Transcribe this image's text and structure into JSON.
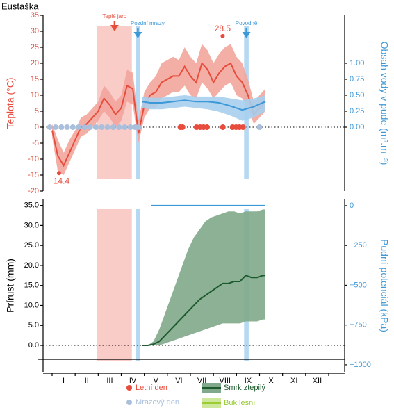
{
  "title": "Eustaška",
  "months": [
    "I",
    "II",
    "III",
    "IV",
    "V",
    "VI",
    "VII",
    "VIII",
    "IX",
    "X",
    "XI",
    "XII"
  ],
  "xlim": [
    0,
    12
  ],
  "periods": [
    {
      "label": "Teplé jaro",
      "start": 1.96,
      "end": 3.46,
      "color": "#f8c3bd"
    },
    {
      "label": "Pozdní mrazy",
      "start": 3.62,
      "end": 3.82,
      "color": "#a9d2f1"
    },
    {
      "label": "Povodně",
      "start": 8.33,
      "end": 8.53,
      "color": "#a9d2f1"
    }
  ],
  "chart_data": [
    {
      "type": "line",
      "ylabel": "Teplota (°C)",
      "y2label": "Obsah vody v pude (m³.m⁻³)",
      "ylim": [
        -20,
        35
      ],
      "yticks": [
        -20,
        -15,
        -10,
        -5,
        0,
        5,
        10,
        15,
        20,
        25,
        30,
        35
      ],
      "y2lim": [
        -1,
        1.75
      ],
      "y2ticks": [
        {
          "value": 0,
          "label": "0.00"
        },
        {
          "value": 0.25,
          "label": "0.25"
        },
        {
          "value": 0.5,
          "label": "0.50"
        },
        {
          "value": 0.75,
          "label": "0.75"
        },
        {
          "value": 1,
          "label": "1.00"
        }
      ],
      "series": [
        {
          "color": "#e74c3c",
          "band_color": "#f2a59c",
          "x": [
            0,
            0.25,
            0.5,
            0.75,
            1,
            1.25,
            1.5,
            1.75,
            2,
            2.25,
            2.5,
            2.75,
            3,
            3.25,
            3.5,
            3.75,
            4,
            4.25,
            4.5,
            4.75,
            5,
            5.25,
            5.5,
            5.75,
            6,
            6.25,
            6.5,
            6.75,
            7,
            7.25,
            7.5,
            7.75,
            8,
            8.25,
            8.5,
            8.75,
            9,
            9.25
          ],
          "values": [
            -1,
            -9,
            -12,
            -8,
            -4,
            0,
            1,
            3,
            5,
            9,
            7,
            4,
            6,
            13,
            12,
            -2,
            7,
            10,
            11,
            14,
            15,
            16,
            16,
            19,
            16,
            14,
            20,
            18,
            14,
            17,
            19,
            20,
            16,
            14,
            10,
            4,
            6,
            8
          ],
          "lower": [
            -3,
            -14,
            -15,
            -11,
            -7,
            -3,
            -2,
            0,
            2,
            5,
            3,
            0,
            2,
            8,
            7,
            -5,
            3,
            6,
            6,
            9,
            10,
            11,
            11,
            13,
            10,
            9,
            14,
            12,
            9,
            11,
            13,
            14,
            10,
            9,
            6,
            1,
            3,
            5
          ],
          "upper": [
            1,
            -4,
            -8,
            -4,
            -1,
            3,
            4,
            6,
            8,
            13,
            11,
            8,
            10,
            18,
            17,
            2,
            11,
            14,
            16,
            20,
            21,
            22,
            21,
            25,
            22,
            20,
            26,
            24,
            20,
            23,
            25,
            26,
            22,
            20,
            15,
            8,
            10,
            12
          ]
        },
        {
          "color": "#3d98d8",
          "band_color": "#a7cfee",
          "axis": "y2",
          "x": [
            3.9,
            4.25,
            4.75,
            5.25,
            5.75,
            6.25,
            6.75,
            7.25,
            7.75,
            8.25,
            8.75,
            9.25
          ],
          "values": [
            0.4,
            0.38,
            0.38,
            0.4,
            0.42,
            0.4,
            0.4,
            0.38,
            0.33,
            0.27,
            0.32,
            0.4
          ],
          "lower": [
            0.3,
            0.28,
            0.28,
            0.3,
            0.32,
            0.3,
            0.28,
            0.24,
            0.18,
            0.1,
            0.15,
            0.25
          ],
          "upper": [
            0.48,
            0.46,
            0.46,
            0.48,
            0.5,
            0.48,
            0.48,
            0.48,
            0.45,
            0.42,
            0.45,
            0.5
          ]
        }
      ],
      "summer_days": {
        "name": "Letní den",
        "color": "#e74c3c",
        "x": [
          5.57,
          5.66,
          6.27,
          6.42,
          6.57,
          6.72,
          7.41,
          7.83,
          7.98,
          8.13,
          8.28
        ]
      },
      "frost_days": {
        "name": "Mrazový den",
        "color": "#a9bfdc",
        "x": [
          -0.1,
          0.15,
          0.4,
          0.65,
          0.9,
          1.15,
          1.4,
          1.65,
          1.9,
          2.15,
          2.4,
          2.65,
          2.9,
          3.15,
          3.4,
          3.6,
          3.75,
          9.0
        ]
      },
      "annotations": [
        {
          "text": "28.5",
          "x": 7.4,
          "y": 28.5
        },
        {
          "text": "−14.4",
          "x": 0.3,
          "y": -14.4
        }
      ]
    },
    {
      "type": "line",
      "ylabel": "Prírust (mm)",
      "y2label": "Pudní potenciál (kPa)",
      "ylim": [
        -6.6,
        36.5
      ],
      "yticks": [
        {
          "value": 0,
          "label": "0.0"
        },
        {
          "value": 5,
          "label": "5.0"
        },
        {
          "value": 10,
          "label": "10.0"
        },
        {
          "value": 15,
          "label": "15.0"
        },
        {
          "value": 20,
          "label": "20.0"
        },
        {
          "value": 25,
          "label": "25.0"
        },
        {
          "value": 30,
          "label": "30.0"
        },
        {
          "value": 35,
          "label": "35.0"
        }
      ],
      "y2lim": [
        -1044,
        39
      ],
      "y2ticks": [
        0,
        {
          "value": -250,
          "label": "−250"
        },
        {
          "value": -500,
          "label": "−500"
        },
        {
          "value": -750,
          "label": "−750"
        },
        {
          "value": -1000,
          "label": "−1000"
        }
      ],
      "series": [
        {
          "name": "Smrk ztepilý",
          "color": "#1d5a2e",
          "band_color": "#7fa98a",
          "x": [
            3.9,
            4.15,
            4.4,
            4.65,
            4.9,
            5.15,
            5.4,
            5.65,
            5.9,
            6.15,
            6.4,
            6.65,
            6.9,
            7.15,
            7.4,
            7.65,
            7.9,
            8.15,
            8.4,
            8.65,
            8.9,
            9.15,
            9.25
          ],
          "values": [
            0,
            0,
            0.3,
            1,
            2.5,
            4,
            5.5,
            7,
            8.5,
            10,
            11.5,
            12.5,
            13.5,
            14.5,
            15.5,
            15.5,
            16,
            16,
            17.5,
            17,
            17,
            17.5,
            17.5
          ],
          "lower": [
            0,
            0,
            0,
            0,
            0.5,
            1,
            1.5,
            2,
            2.5,
            3,
            3.5,
            4,
            4.5,
            5,
            5.5,
            5.5,
            5.5,
            5.5,
            6,
            6,
            6,
            6.5,
            6.5
          ],
          "upper": [
            0,
            0,
            1,
            4,
            8,
            12,
            16,
            20,
            24,
            27,
            29,
            31,
            32,
            32.5,
            33,
            33.5,
            33.5,
            33,
            33.5,
            33.5,
            33.5,
            34,
            34
          ]
        },
        {
          "name": "Buk lesní",
          "color": "#9acd32",
          "band_color": "#cde89a",
          "x": [],
          "values": []
        },
        {
          "color": "#3d98d8",
          "axis": "y2",
          "x": [
            4.3,
            9.25
          ],
          "values": [
            0,
            0
          ]
        }
      ]
    }
  ]
}
